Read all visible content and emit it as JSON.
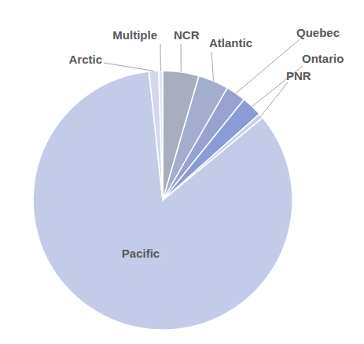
{
  "chart_data": {
    "type": "pie",
    "categories": [
      "NCR",
      "Atlantic",
      "Quebec",
      "Ontario",
      "PNR",
      "Pacific",
      "Arctic",
      "Multiple"
    ],
    "values": [
      4.5,
      3.8,
      2.5,
      2.6,
      0.6,
      84.3,
      1.2,
      0.5
    ],
    "colors": [
      "#a9aebe",
      "#a3adcf",
      "#96a3d1",
      "#8a9bd5",
      "#c8d0ea",
      "#c3cbe8",
      "#d3d8ee",
      "#e0e4f3"
    ]
  }
}
